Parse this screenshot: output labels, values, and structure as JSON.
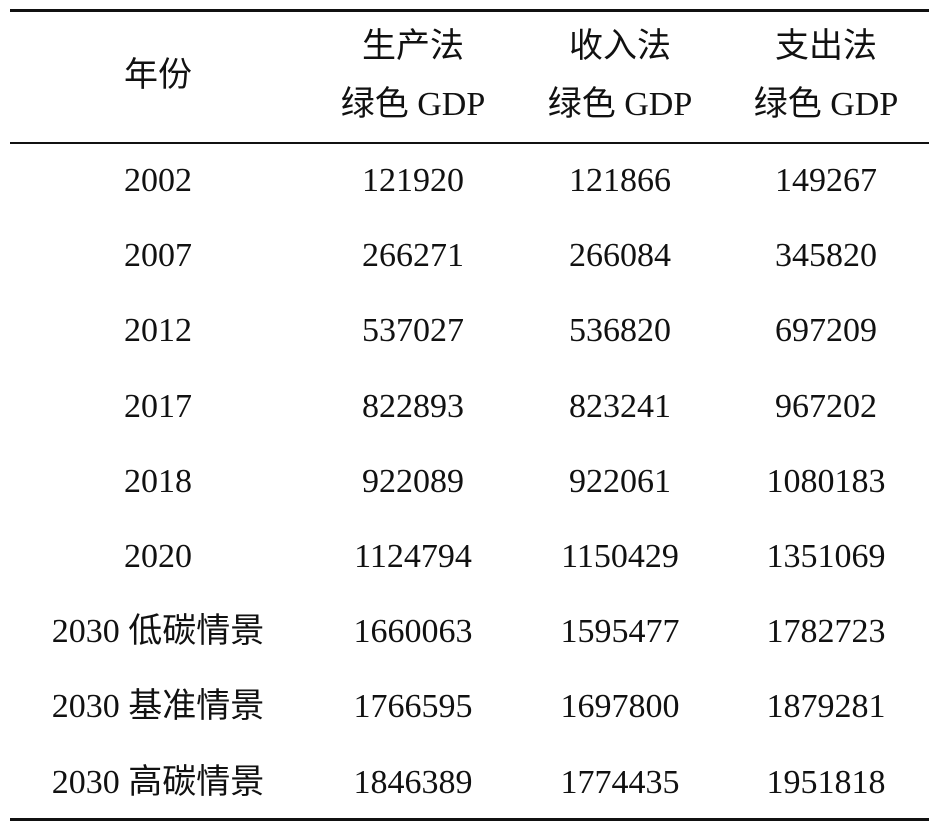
{
  "table": {
    "header": [
      "年份",
      [
        "生产法",
        "绿色 GDP"
      ],
      [
        "收入法",
        "绿色 GDP"
      ],
      [
        "支出法",
        "绿色 GDP"
      ]
    ],
    "rows": [
      [
        "2002",
        "121920",
        "121866",
        "149267"
      ],
      [
        "2007",
        "266271",
        "266084",
        "345820"
      ],
      [
        "2012",
        "537027",
        "536820",
        "697209"
      ],
      [
        "2017",
        "822893",
        "823241",
        "967202"
      ],
      [
        "2018",
        "922089",
        "922061",
        "1080183"
      ],
      [
        "2020",
        "1124794",
        "1150429",
        "1351069"
      ],
      [
        "2030 低碳情景",
        "1660063",
        "1595477",
        "1782723"
      ],
      [
        "2030 基准情景",
        "1766595",
        "1697800",
        "1879281"
      ],
      [
        "2030 高碳情景",
        "1846389",
        "1774435",
        "1951818"
      ]
    ]
  }
}
